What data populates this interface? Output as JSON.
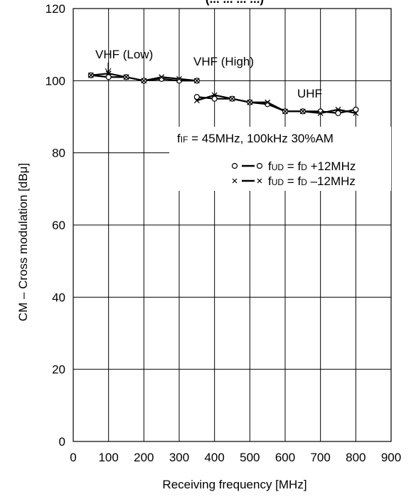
{
  "chart_data": {
    "type": "line",
    "title": "(... ... ... ...)",
    "xlabel": "Receiving frequency [MHz]",
    "ylabel": "CM – Cross modulation [dBμ]",
    "xlim": [
      0,
      900
    ],
    "ylim": [
      0,
      120
    ],
    "x_ticks": [
      0,
      100,
      200,
      300,
      400,
      500,
      600,
      700,
      800,
      900
    ],
    "y_ticks": [
      0,
      20,
      40,
      60,
      80,
      100,
      120
    ],
    "grid": true,
    "series": [
      {
        "name": "fUD = fD +12MHz",
        "marker": "circle",
        "segments": [
          {
            "x": [
              50,
              100,
              150,
              200,
              250,
              300,
              350
            ],
            "y": [
              101.5,
              101,
              101,
              100,
              100.5,
              100,
              100
            ]
          },
          {
            "x": [
              350,
              400,
              450,
              500,
              550,
              600,
              650,
              700,
              750,
              800
            ],
            "y": [
              95.5,
              95,
              95,
              94,
              93.5,
              91.5,
              91.5,
              91.5,
              91,
              92
            ]
          }
        ]
      },
      {
        "name": "fUD = fD –12MHz",
        "marker": "cross",
        "segments": [
          {
            "x": [
              50,
              100,
              150,
              200,
              250,
              300,
              350
            ],
            "y": [
              101.5,
              102,
              101,
              100,
              101,
              100.5,
              100
            ]
          },
          {
            "x": [
              350,
              400,
              450,
              500,
              550,
              600,
              650,
              700,
              750,
              800
            ],
            "y": [
              94.5,
              96,
              95,
              94,
              94,
              91.5,
              91.5,
              91,
              92,
              91
            ]
          }
        ]
      }
    ],
    "annotations": {
      "vhf_low": "VHF (Low)",
      "vhf_high": "VHF (High)",
      "uhf": "UHF",
      "condition_f": "f",
      "condition_sub": "IF",
      "condition_rest": " = 45MHz, 100kHz   30%AM"
    },
    "legend": [
      {
        "marker": "circle",
        "f1": "f",
        "sub1": "UD",
        "mid": " = f",
        "sub2": "D",
        "rest": " +12MHz"
      },
      {
        "marker": "cross",
        "f1": "f",
        "sub1": "UD",
        "mid": " = f",
        "sub2": "D",
        "rest": " –12MHz"
      }
    ]
  }
}
